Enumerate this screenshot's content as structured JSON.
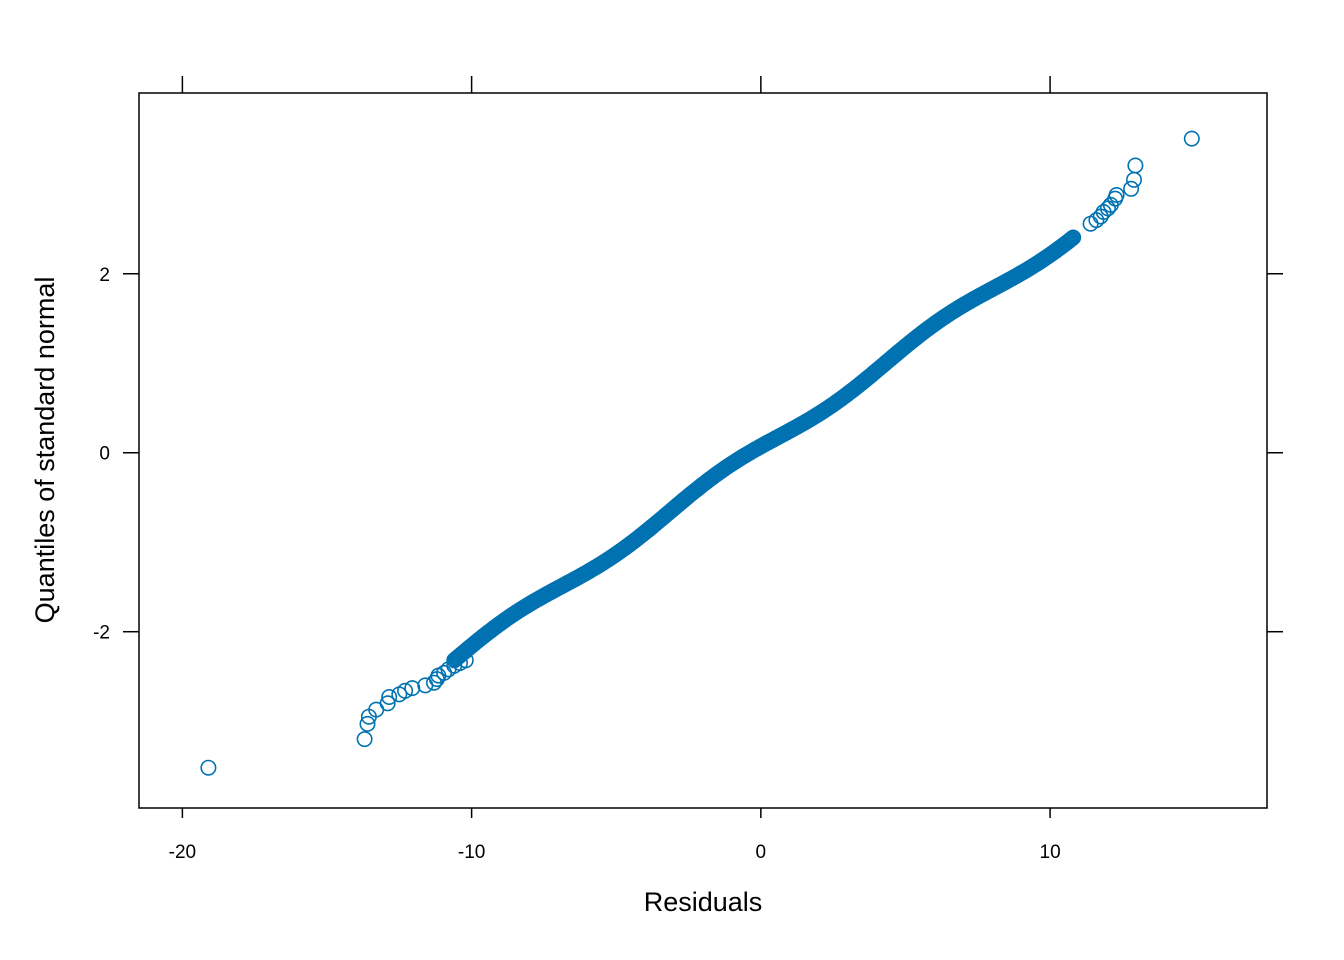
{
  "chart_data": {
    "type": "scatter",
    "title": "",
    "xlabel": "Residuals",
    "ylabel": "Quantiles of standard normal",
    "xlim": [
      -21.5,
      17.5
    ],
    "ylim": [
      -3.97,
      4.02
    ],
    "x_ticks": [
      -20,
      -10,
      0,
      10
    ],
    "x_tick_labels": [
      "-20",
      "-10",
      "0",
      "10"
    ],
    "y_ticks": [
      -2,
      0,
      2
    ],
    "y_tick_labels": [
      "-2",
      "0",
      "2"
    ],
    "grid": false,
    "legend": "none",
    "marker": "open-circle",
    "colors": {
      "points": "#0072b2",
      "axes": "#000000"
    },
    "bulk_trend": {
      "x": [
        -10.6,
        10.8
      ],
      "y": [
        -2.32,
        2.45
      ]
    },
    "points": [
      [
        -19.1,
        -3.52
      ],
      [
        -13.7,
        -3.2
      ],
      [
        -13.6,
        -3.03
      ],
      [
        -13.55,
        -2.95
      ],
      [
        -13.3,
        -2.87
      ],
      [
        -12.9,
        -2.8
      ],
      [
        -12.85,
        -2.73
      ],
      [
        -12.5,
        -2.7
      ],
      [
        -12.3,
        -2.66
      ],
      [
        -12.05,
        -2.63
      ],
      [
        -11.6,
        -2.6
      ],
      [
        -11.3,
        -2.57
      ],
      [
        -11.2,
        -2.53
      ],
      [
        -11.15,
        -2.49
      ],
      [
        -10.95,
        -2.46
      ],
      [
        -10.8,
        -2.42
      ],
      [
        -10.6,
        -2.38
      ],
      [
        -10.4,
        -2.35
      ],
      [
        -10.2,
        -2.32
      ],
      [
        11.4,
        2.56
      ],
      [
        11.6,
        2.6
      ],
      [
        11.75,
        2.64
      ],
      [
        11.85,
        2.69
      ],
      [
        12.0,
        2.73
      ],
      [
        12.1,
        2.77
      ],
      [
        12.25,
        2.84
      ],
      [
        12.3,
        2.88
      ],
      [
        12.8,
        2.95
      ],
      [
        12.9,
        3.05
      ],
      [
        12.95,
        3.21
      ],
      [
        14.9,
        3.51
      ]
    ]
  }
}
